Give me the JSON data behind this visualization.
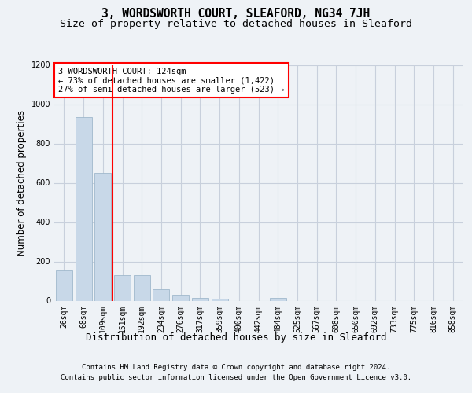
{
  "title": "3, WORDSWORTH COURT, SLEAFORD, NG34 7JH",
  "subtitle": "Size of property relative to detached houses in Sleaford",
  "xlabel": "Distribution of detached houses by size in Sleaford",
  "ylabel": "Number of detached properties",
  "footer_line1": "Contains HM Land Registry data © Crown copyright and database right 2024.",
  "footer_line2": "Contains public sector information licensed under the Open Government Licence v3.0.",
  "categories": [
    "26sqm",
    "68sqm",
    "109sqm",
    "151sqm",
    "192sqm",
    "234sqm",
    "276sqm",
    "317sqm",
    "359sqm",
    "400sqm",
    "442sqm",
    "484sqm",
    "525sqm",
    "567sqm",
    "608sqm",
    "650sqm",
    "692sqm",
    "733sqm",
    "775sqm",
    "816sqm",
    "858sqm"
  ],
  "values": [
    155,
    935,
    650,
    130,
    130,
    57,
    30,
    15,
    10,
    0,
    0,
    13,
    0,
    0,
    0,
    0,
    0,
    0,
    0,
    0,
    0
  ],
  "bar_color": "#c8d8e8",
  "bar_edge_color": "#a0b8cc",
  "redline_x": 2.5,
  "annotation_text": "3 WORDSWORTH COURT: 124sqm\n← 73% of detached houses are smaller (1,422)\n27% of semi-detached houses are larger (523) →",
  "annotation_box_color": "white",
  "annotation_box_edge": "red",
  "redline_color": "red",
  "ylim": [
    0,
    1200
  ],
  "yticks": [
    0,
    200,
    400,
    600,
    800,
    1000,
    1200
  ],
  "bg_color": "#eef2f6",
  "plot_bg_color": "#eef2f6",
  "grid_color": "#c8d0dc",
  "title_fontsize": 10.5,
  "subtitle_fontsize": 9.5,
  "xlabel_fontsize": 9,
  "ylabel_fontsize": 8.5,
  "tick_fontsize": 7,
  "footer_fontsize": 6.5,
  "ann_fontsize": 7.5
}
